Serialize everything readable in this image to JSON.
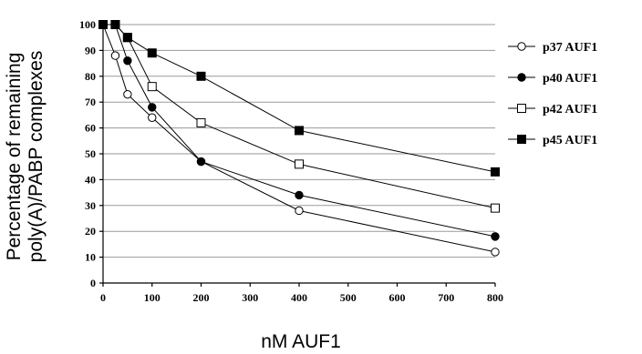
{
  "chart_data": {
    "type": "line",
    "title": "",
    "xlabel": "nM AUF1",
    "ylabel_lines": [
      "Percentage of remaining",
      "poly(A)/PABP complexes"
    ],
    "x_categories": [
      "0",
      "100",
      "200",
      "300",
      "400",
      "500",
      "600",
      "700",
      "800"
    ],
    "x_category_values": [
      0,
      100,
      200,
      300,
      400,
      500,
      600,
      700,
      800
    ],
    "x_axis_note": "x positions are categorical: 0-100-200-300-400-500-600-700-800 evenly spaced; values between ticks interpolated linearly",
    "yticks": [
      0,
      10,
      20,
      30,
      40,
      50,
      60,
      70,
      80,
      90,
      100
    ],
    "ylim": [
      0,
      100
    ],
    "grid": "horizontal",
    "legend_position": "right",
    "series": [
      {
        "name": "p37 AUF1",
        "marker": "circle",
        "fill": "#ffffff",
        "points": [
          [
            0,
            100
          ],
          [
            25,
            88
          ],
          [
            50,
            73
          ],
          [
            100,
            64
          ],
          [
            200,
            47
          ],
          [
            400,
            28
          ],
          [
            800,
            12
          ]
        ]
      },
      {
        "name": "p40 AUF1",
        "marker": "circle",
        "fill": "#000000",
        "points": [
          [
            0,
            100
          ],
          [
            25,
            100
          ],
          [
            50,
            86
          ],
          [
            100,
            68
          ],
          [
            200,
            47
          ],
          [
            400,
            34
          ],
          [
            800,
            18
          ]
        ]
      },
      {
        "name": "p42 AUF1",
        "marker": "square",
        "fill": "#ffffff",
        "points": [
          [
            0,
            100
          ],
          [
            25,
            100
          ],
          [
            50,
            95
          ],
          [
            100,
            76
          ],
          [
            200,
            62
          ],
          [
            400,
            46
          ],
          [
            800,
            29
          ]
        ]
      },
      {
        "name": "p45 AUF1",
        "marker": "square",
        "fill": "#000000",
        "points": [
          [
            0,
            100
          ],
          [
            25,
            100
          ],
          [
            50,
            95
          ],
          [
            100,
            89
          ],
          [
            200,
            80
          ],
          [
            400,
            59
          ],
          [
            800,
            43
          ]
        ]
      }
    ]
  }
}
